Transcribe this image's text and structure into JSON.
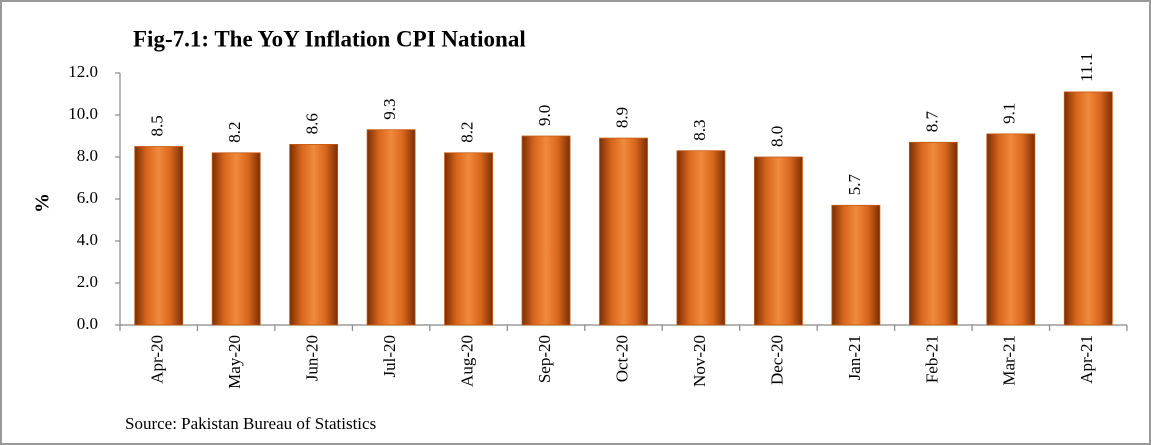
{
  "chart_data": {
    "type": "bar",
    "title": "Fig-7.1: The YoY Inflation CPI National",
    "y_label": "%",
    "source": "Source: Pakistan Bureau of Statistics",
    "categories": [
      "Apr-20",
      "May-20",
      "Jun-20",
      "Jul-20",
      "Aug-20",
      "Sep-20",
      "Oct-20",
      "Nov-20",
      "Dec-20",
      "Jan-21",
      "Feb-21",
      "Mar-21",
      "Apr-21"
    ],
    "values": [
      8.5,
      8.2,
      8.6,
      9.3,
      8.2,
      9.0,
      8.9,
      8.3,
      8.0,
      5.7,
      8.7,
      9.1,
      11.1
    ],
    "value_labels": [
      "8.5",
      "8.2",
      "8.6",
      "9.3",
      "8.2",
      "9.0",
      "8.9",
      "8.3",
      "8.0",
      "5.7",
      "8.7",
      "9.1",
      "11.1"
    ],
    "color": "#c55a11",
    "ylim": [
      0,
      12
    ],
    "yticks": [
      {
        "value": 0,
        "label": "0.0"
      },
      {
        "value": 2,
        "label": "2.0"
      },
      {
        "value": 4,
        "label": "4.0"
      },
      {
        "value": 6,
        "label": "6.0"
      },
      {
        "value": 8,
        "label": "8.0"
      },
      {
        "value": 10,
        "label": "10.0"
      },
      {
        "value": 12,
        "label": "12.0"
      }
    ],
    "grid": false
  }
}
